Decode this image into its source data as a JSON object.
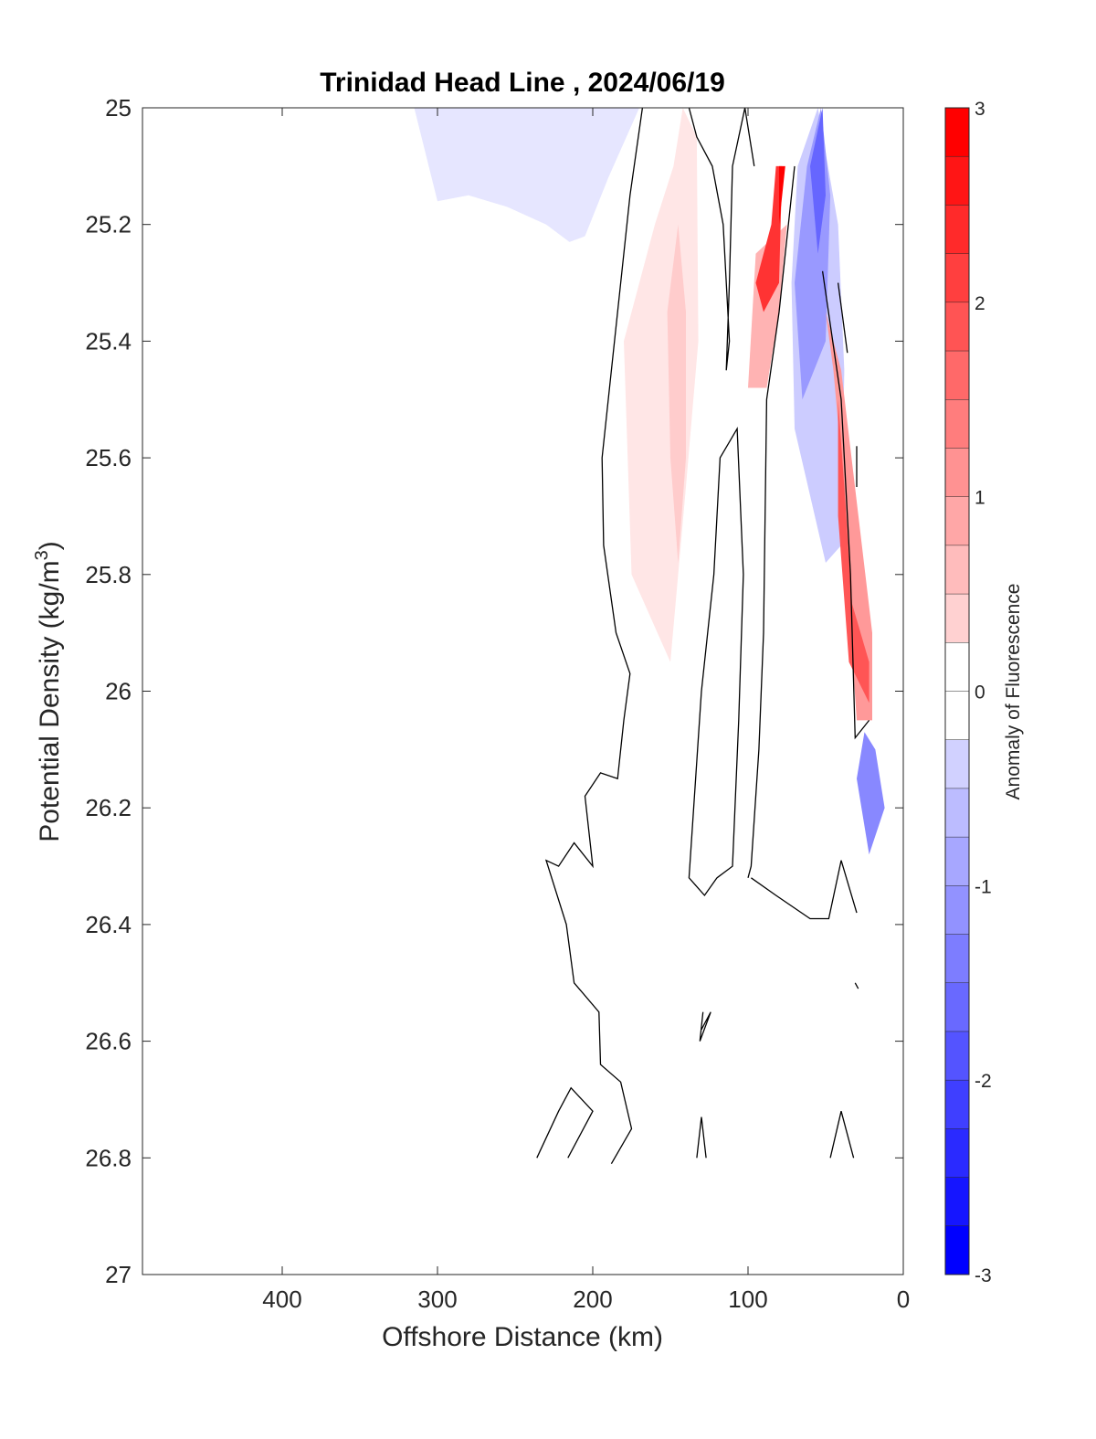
{
  "chart_data": {
    "type": "contour",
    "title": "Trinidad Head Line , 2024/06/19",
    "xlabel": "Offshore Distance (km)",
    "ylabel_main": "Potential Density (kg/m",
    "ylabel_sup": "3",
    "ylabel_close": ")",
    "xlim": [
      0,
      490
    ],
    "x_reversed": true,
    "ylim": [
      25,
      27
    ],
    "y_reversed": true,
    "xticks": [
      400,
      300,
      200,
      100,
      0
    ],
    "yticks": [
      25,
      25.2,
      25.4,
      25.6,
      25.8,
      26,
      26.2,
      26.4,
      26.6,
      26.8,
      27
    ],
    "colorbar": {
      "label": "Anomaly of Fluorescence",
      "clim": [
        -3,
        3
      ],
      "step": 0.25,
      "ticks": [
        3,
        2,
        1,
        0,
        -1,
        -2,
        -3
      ]
    },
    "filled_regions": [
      {
        "level": -0.25,
        "color": "#e6e6ff",
        "points": [
          [
            315,
            25
          ],
          [
            170,
            25
          ],
          [
            190,
            25.12
          ],
          [
            205,
            25.22
          ],
          [
            215,
            25.23
          ],
          [
            230,
            25.2
          ],
          [
            255,
            25.17
          ],
          [
            280,
            25.15
          ],
          [
            300,
            25.16
          ]
        ]
      },
      {
        "level": 0.25,
        "color": "#ffe6e6",
        "points": [
          [
            142,
            25
          ],
          [
            133,
            25.05
          ],
          [
            132,
            25.4
          ],
          [
            140,
            25.65
          ],
          [
            150,
            25.95
          ],
          [
            175,
            25.8
          ],
          [
            180,
            25.4
          ],
          [
            160,
            25.2
          ],
          [
            148,
            25.1
          ]
        ]
      },
      {
        "level": 0.5,
        "color": "#ffcccc",
        "points": [
          [
            145,
            25.2
          ],
          [
            152,
            25.35
          ],
          [
            150,
            25.6
          ],
          [
            145,
            25.78
          ],
          [
            140,
            25.6
          ],
          [
            140,
            25.35
          ]
        ]
      },
      {
        "level": -0.5,
        "color": "#ccccff",
        "points": [
          [
            55,
            25
          ],
          [
            42,
            25.2
          ],
          [
            38,
            25.45
          ],
          [
            40,
            25.75
          ],
          [
            50,
            25.78
          ],
          [
            70,
            25.55
          ],
          [
            72,
            25.3
          ],
          [
            68,
            25.1
          ]
        ]
      },
      {
        "level": -1.0,
        "color": "#9999ff",
        "points": [
          [
            53,
            25
          ],
          [
            47,
            25.15
          ],
          [
            50,
            25.4
          ],
          [
            65,
            25.5
          ],
          [
            70,
            25.3
          ],
          [
            62,
            25.1
          ]
        ]
      },
      {
        "level": -1.75,
        "color": "#6666ff",
        "points": [
          [
            52,
            25
          ],
          [
            50,
            25.15
          ],
          [
            55,
            25.25
          ],
          [
            60,
            25.1
          ]
        ]
      },
      {
        "level": 0.75,
        "color": "#ffb3b3",
        "points": [
          [
            75,
            25.2
          ],
          [
            95,
            25.25
          ],
          [
            100,
            25.48
          ],
          [
            88,
            25.48
          ],
          [
            80,
            25.35
          ]
        ]
      },
      {
        "level": 2.25,
        "color": "#ff3333",
        "points": [
          [
            82,
            25.1
          ],
          [
            78,
            25.1
          ],
          [
            80,
            25.3
          ],
          [
            90,
            25.35
          ],
          [
            95,
            25.3
          ],
          [
            85,
            25.2
          ]
        ]
      },
      {
        "level": 2.75,
        "color": "#ff0000",
        "points": [
          [
            80,
            25.1
          ],
          [
            76,
            25.1
          ],
          [
            80,
            25.2
          ]
        ]
      },
      {
        "level": 1.0,
        "color": "#ff9999",
        "points": [
          [
            50,
            25.35
          ],
          [
            40,
            25.45
          ],
          [
            20,
            25.9
          ],
          [
            20,
            26.05
          ],
          [
            30,
            26.05
          ],
          [
            35,
            25.85
          ],
          [
            40,
            25.6
          ],
          [
            45,
            25.45
          ]
        ]
      },
      {
        "level": 2.0,
        "color": "#ff5555",
        "points": [
          [
            42,
            25.5
          ],
          [
            38,
            25.65
          ],
          [
            33,
            25.85
          ],
          [
            22,
            25.95
          ],
          [
            22,
            26.02
          ],
          [
            35,
            25.95
          ],
          [
            42,
            25.7
          ]
        ]
      },
      {
        "level": -1.25,
        "color": "#8888ff",
        "points": [
          [
            25,
            26.07
          ],
          [
            30,
            26.15
          ],
          [
            22,
            26.28
          ],
          [
            12,
            26.2
          ],
          [
            18,
            26.1
          ]
        ]
      }
    ],
    "contour_lines": [
      [
        [
          168,
          25
        ],
        [
          176,
          25.15
        ],
        [
          186,
          25.4
        ],
        [
          194,
          25.6
        ],
        [
          193,
          25.75
        ],
        [
          185,
          25.9
        ],
        [
          176,
          25.97
        ],
        [
          180,
          26.05
        ],
        [
          184,
          26.15
        ],
        [
          195,
          26.14
        ],
        [
          205,
          26.18
        ],
        [
          200,
          26.3
        ],
        [
          212,
          26.26
        ],
        [
          222,
          26.3
        ],
        [
          230,
          26.29
        ],
        [
          217,
          26.4
        ],
        [
          212,
          26.5
        ],
        [
          196,
          26.55
        ],
        [
          195,
          26.64
        ],
        [
          182,
          26.67
        ],
        [
          175,
          26.75
        ],
        [
          188,
          26.81
        ]
      ],
      [
        [
          138,
          25
        ],
        [
          133,
          25.05
        ],
        [
          123,
          25.1
        ],
        [
          116,
          25.2
        ],
        [
          112,
          25.4
        ],
        [
          114,
          25.45
        ],
        [
          112,
          25.3
        ],
        [
          110,
          25.1
        ],
        [
          102,
          25
        ],
        [
          96,
          25.1
        ]
      ],
      [
        [
          120,
          26.32
        ],
        [
          110,
          26.3
        ],
        [
          106,
          26.05
        ],
        [
          103,
          25.8
        ],
        [
          107,
          25.55
        ],
        [
          118,
          25.6
        ],
        [
          122,
          25.8
        ],
        [
          130,
          26
        ],
        [
          138,
          26.32
        ],
        [
          128,
          26.35
        ],
        [
          120,
          26.32
        ]
      ],
      [
        [
          70,
          25.1
        ],
        [
          80,
          25.35
        ],
        [
          88,
          25.5
        ],
        [
          90,
          25.9
        ],
        [
          93,
          26.1
        ],
        [
          98,
          26.3
        ],
        [
          100,
          26.32
        ]
      ],
      [
        [
          98,
          26.32
        ],
        [
          82,
          26.35
        ],
        [
          60,
          26.39
        ],
        [
          48,
          26.39
        ],
        [
          40,
          26.29
        ],
        [
          30,
          26.38
        ]
      ],
      [
        [
          52,
          25.28
        ],
        [
          40,
          25.5
        ],
        [
          34,
          25.8
        ],
        [
          31,
          26.08
        ],
        [
          22,
          26.05
        ]
      ],
      [
        [
          42,
          25.3
        ],
        [
          36,
          25.42
        ]
      ],
      [
        [
          30,
          25.58
        ],
        [
          30,
          25.65
        ]
      ],
      [
        [
          130,
          26.58
        ],
        [
          124,
          26.55
        ],
        [
          131,
          26.6
        ],
        [
          129,
          26.55
        ]
      ],
      [
        [
          236,
          26.8
        ],
        [
          222,
          26.72
        ],
        [
          214,
          26.68
        ],
        [
          200,
          26.72
        ],
        [
          216,
          26.8
        ]
      ],
      [
        [
          133,
          26.8
        ],
        [
          130,
          26.73
        ],
        [
          127,
          26.8
        ]
      ],
      [
        [
          47,
          26.8
        ],
        [
          40,
          26.72
        ],
        [
          32,
          26.8
        ]
      ],
      [
        [
          31,
          26.5
        ],
        [
          29,
          26.51
        ]
      ]
    ]
  }
}
